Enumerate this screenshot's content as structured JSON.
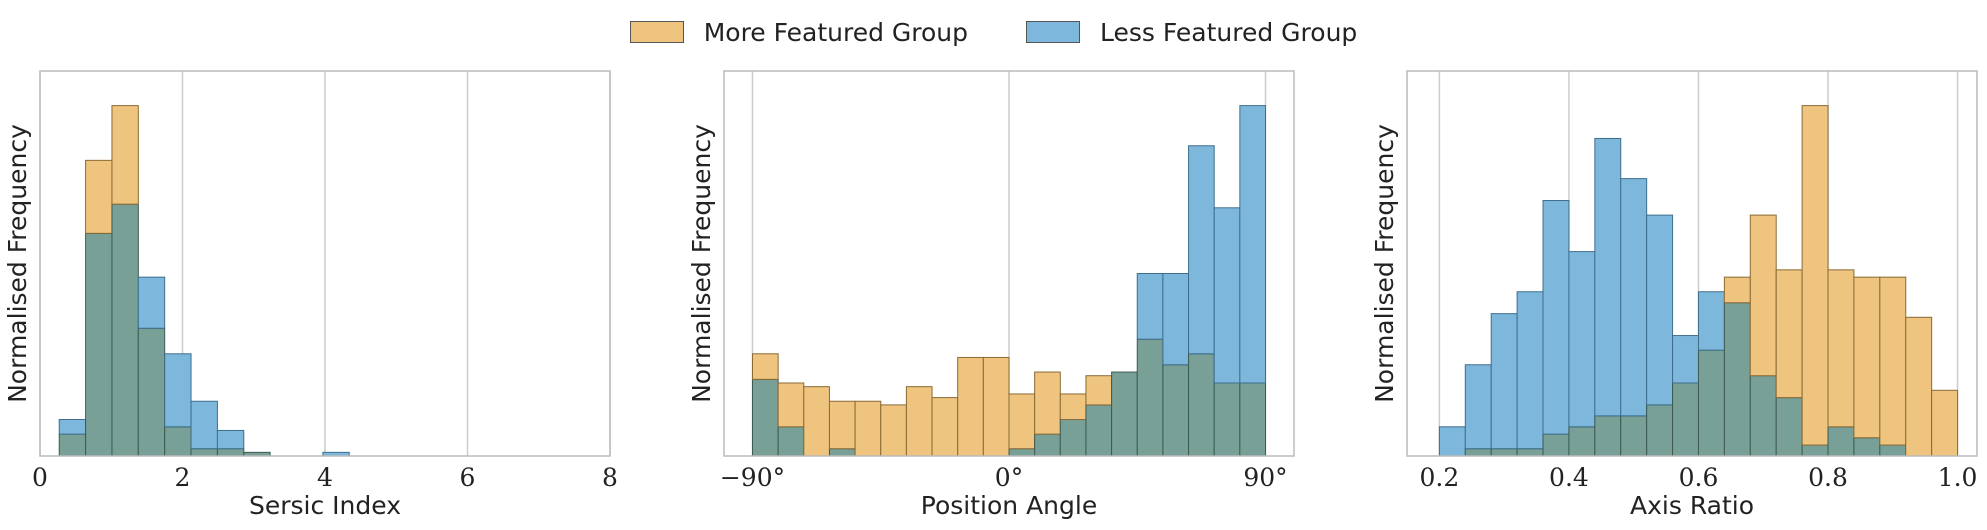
{
  "legend": {
    "more_label": "More Featured Group",
    "less_label": "Less Featured Group"
  },
  "colors": {
    "more": "#e8a838",
    "less": "#4a9acd",
    "overlap": "#78a096",
    "grid": "#cccccc"
  },
  "chart_data": [
    {
      "type": "bar",
      "xlabel": "Sersic Index",
      "ylabel": "Normalised Frequency",
      "xlim": [
        0,
        8
      ],
      "ylim": [
        0,
        1
      ],
      "xticks": [
        0,
        2,
        4,
        6,
        8
      ],
      "xtick_labels": [
        "0",
        "2",
        "4",
        "6",
        "8"
      ],
      "grid": true,
      "bin_edges": [
        0.27,
        0.64,
        1.01,
        1.38,
        1.75,
        2.12,
        2.49,
        2.86,
        3.23,
        3.6,
        3.97,
        4.34
      ],
      "series": [
        {
          "name": "More Featured Group",
          "values": [
            0.06,
            0.81,
            0.96,
            0.35,
            0.08,
            0.02,
            0.02,
            0.01,
            0.0,
            0.0,
            0.0
          ]
        },
        {
          "name": "Less Featured Group",
          "values": [
            0.1,
            0.61,
            0.69,
            0.49,
            0.28,
            0.15,
            0.07,
            0.01,
            0.0,
            0.0,
            0.01
          ]
        }
      ]
    },
    {
      "type": "bar",
      "xlabel": "Position Angle",
      "ylabel": "Normalised Frequency",
      "xlim": [
        -100,
        100
      ],
      "ylim": [
        0,
        1
      ],
      "xticks": [
        -90,
        0,
        90
      ],
      "xtick_labels": [
        "−90°",
        "0°",
        "90°"
      ],
      "grid": true,
      "bin_edges": [
        -90,
        -81,
        -72,
        -63,
        -54,
        -45,
        -36,
        -27,
        -18,
        -9,
        0,
        9,
        18,
        27,
        36,
        45,
        54,
        63,
        72,
        81,
        90
      ],
      "series": [
        {
          "name": "More Featured Group",
          "values": [
            0.28,
            0.2,
            0.19,
            0.15,
            0.15,
            0.14,
            0.19,
            0.16,
            0.27,
            0.27,
            0.17,
            0.23,
            0.17,
            0.22,
            0.23,
            0.32,
            0.25,
            0.28,
            0.2,
            0.2
          ]
        },
        {
          "name": "Less Featured Group",
          "values": [
            0.21,
            0.08,
            0.0,
            0.02,
            0.0,
            0.0,
            0.0,
            0.0,
            0.0,
            0.0,
            0.02,
            0.06,
            0.1,
            0.14,
            0.23,
            0.5,
            0.5,
            0.85,
            0.68,
            0.96
          ]
        }
      ]
    },
    {
      "type": "bar",
      "xlabel": "Axis Ratio",
      "ylabel": "Normalised Frequency",
      "xlim": [
        0.15,
        1.03
      ],
      "ylim": [
        0,
        1
      ],
      "xticks": [
        0.2,
        0.4,
        0.6,
        0.8,
        1.0
      ],
      "xtick_labels": [
        "0.2",
        "0.4",
        "0.6",
        "0.8",
        "1.0"
      ],
      "grid": true,
      "bin_edges": [
        0.2,
        0.24,
        0.28,
        0.32,
        0.36,
        0.4,
        0.44,
        0.48,
        0.52,
        0.56,
        0.6,
        0.64,
        0.68,
        0.72,
        0.76,
        0.8,
        0.84,
        0.88,
        0.92,
        0.96,
        1.0
      ],
      "series": [
        {
          "name": "More Featured Group",
          "values": [
            0.0,
            0.02,
            0.02,
            0.02,
            0.06,
            0.08,
            0.11,
            0.11,
            0.14,
            0.2,
            0.29,
            0.49,
            0.66,
            0.51,
            0.96,
            0.51,
            0.49,
            0.49,
            0.38,
            0.18
          ]
        },
        {
          "name": "Less Featured Group",
          "values": [
            0.08,
            0.25,
            0.39,
            0.45,
            0.7,
            0.56,
            0.87,
            0.76,
            0.66,
            0.33,
            0.45,
            0.42,
            0.22,
            0.16,
            0.03,
            0.08,
            0.05,
            0.03,
            0.0,
            0.0
          ]
        }
      ]
    }
  ]
}
